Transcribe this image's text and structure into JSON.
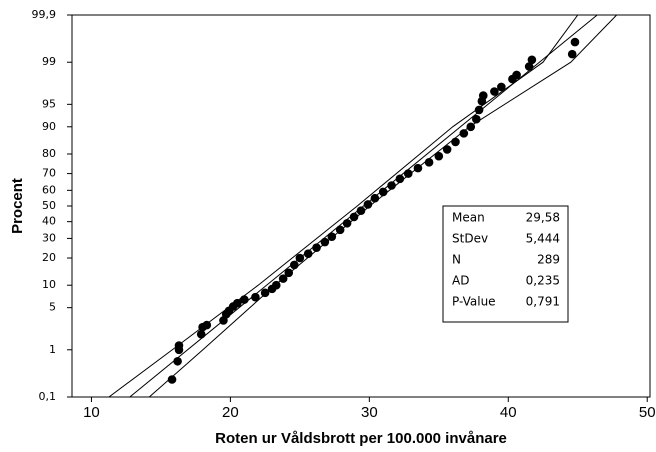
{
  "chart_data": {
    "type": "probability",
    "xlabel": "Roten ur Våldsbrott per 100.000 invånare",
    "ylabel": "Procent",
    "xlim": [
      8.6,
      50.2
    ],
    "xticks": [
      10,
      20,
      30,
      40,
      50
    ],
    "ylim": [
      0.1,
      99.9
    ],
    "yscale": "normal",
    "yticks": [
      {
        "value": 0.1,
        "label": "0,1"
      },
      1,
      5,
      10,
      20,
      30,
      40,
      50,
      60,
      70,
      80,
      90,
      95,
      99,
      {
        "value": 99.9,
        "label": "99,9"
      }
    ],
    "series": [
      {
        "color": "#000000",
        "x": [
          15.8,
          16.2,
          16.3,
          16.3,
          17.9,
          18.0,
          18.3,
          19.5,
          19.7,
          19.9,
          20.2,
          20.5,
          21.0,
          21.8,
          22.5,
          23.0,
          23.3,
          23.8,
          24.2,
          24.6,
          25.0,
          25.6,
          26.2,
          26.8,
          27.3,
          27.9,
          28.4,
          28.9,
          29.4,
          29.9,
          30.4,
          31.0,
          31.6,
          32.2,
          32.8,
          33.5,
          34.3,
          35.0,
          35.6,
          36.2,
          36.8,
          37.3,
          37.7,
          37.9,
          38.1,
          38.2,
          39.0,
          39.5,
          40.3,
          40.6,
          41.5,
          41.7,
          44.6,
          44.8
        ],
        "values": [
          0.25,
          0.6,
          1.0,
          1.2,
          1.9,
          2.5,
          2.7,
          3.2,
          4,
          4.5,
          5.2,
          5.8,
          6.5,
          7,
          8,
          9,
          10,
          12,
          14,
          17,
          20,
          22,
          25,
          28,
          31,
          35,
          39,
          43,
          47,
          51,
          55,
          59,
          63,
          67,
          70,
          73,
          76,
          79,
          82,
          85,
          88,
          90,
          92,
          94,
          95.5,
          96.3,
          96.8,
          97.3,
          98,
          98.3,
          98.8,
          99.1,
          99.3,
          99.6
        ]
      }
    ],
    "fit_lines": [
      {
        "color": "#000000",
        "x": [
          12.76,
          46.4
        ],
        "values": [
          0.1,
          99.9
        ]
      },
      {
        "color": "#000000",
        "x": [
          11.26,
          15.82,
          22.0,
          29.13,
          36.0,
          42.5,
          45.0
        ],
        "values": [
          0.1,
          1,
          10,
          50,
          90,
          99,
          99.9
        ]
      },
      {
        "color": "#000000",
        "x": [
          14.16,
          18.02,
          23.2,
          30.03,
          37.2,
          44.5,
          47.8
        ],
        "values": [
          0.1,
          1,
          10,
          50,
          90,
          99,
          99.9
        ]
      }
    ],
    "stats": [
      [
        "Mean",
        "29,58"
      ],
      [
        "StDev",
        "5,444"
      ],
      [
        "N",
        "289"
      ],
      [
        "AD",
        "0,235"
      ],
      [
        "P-Value",
        "0,791"
      ]
    ]
  }
}
